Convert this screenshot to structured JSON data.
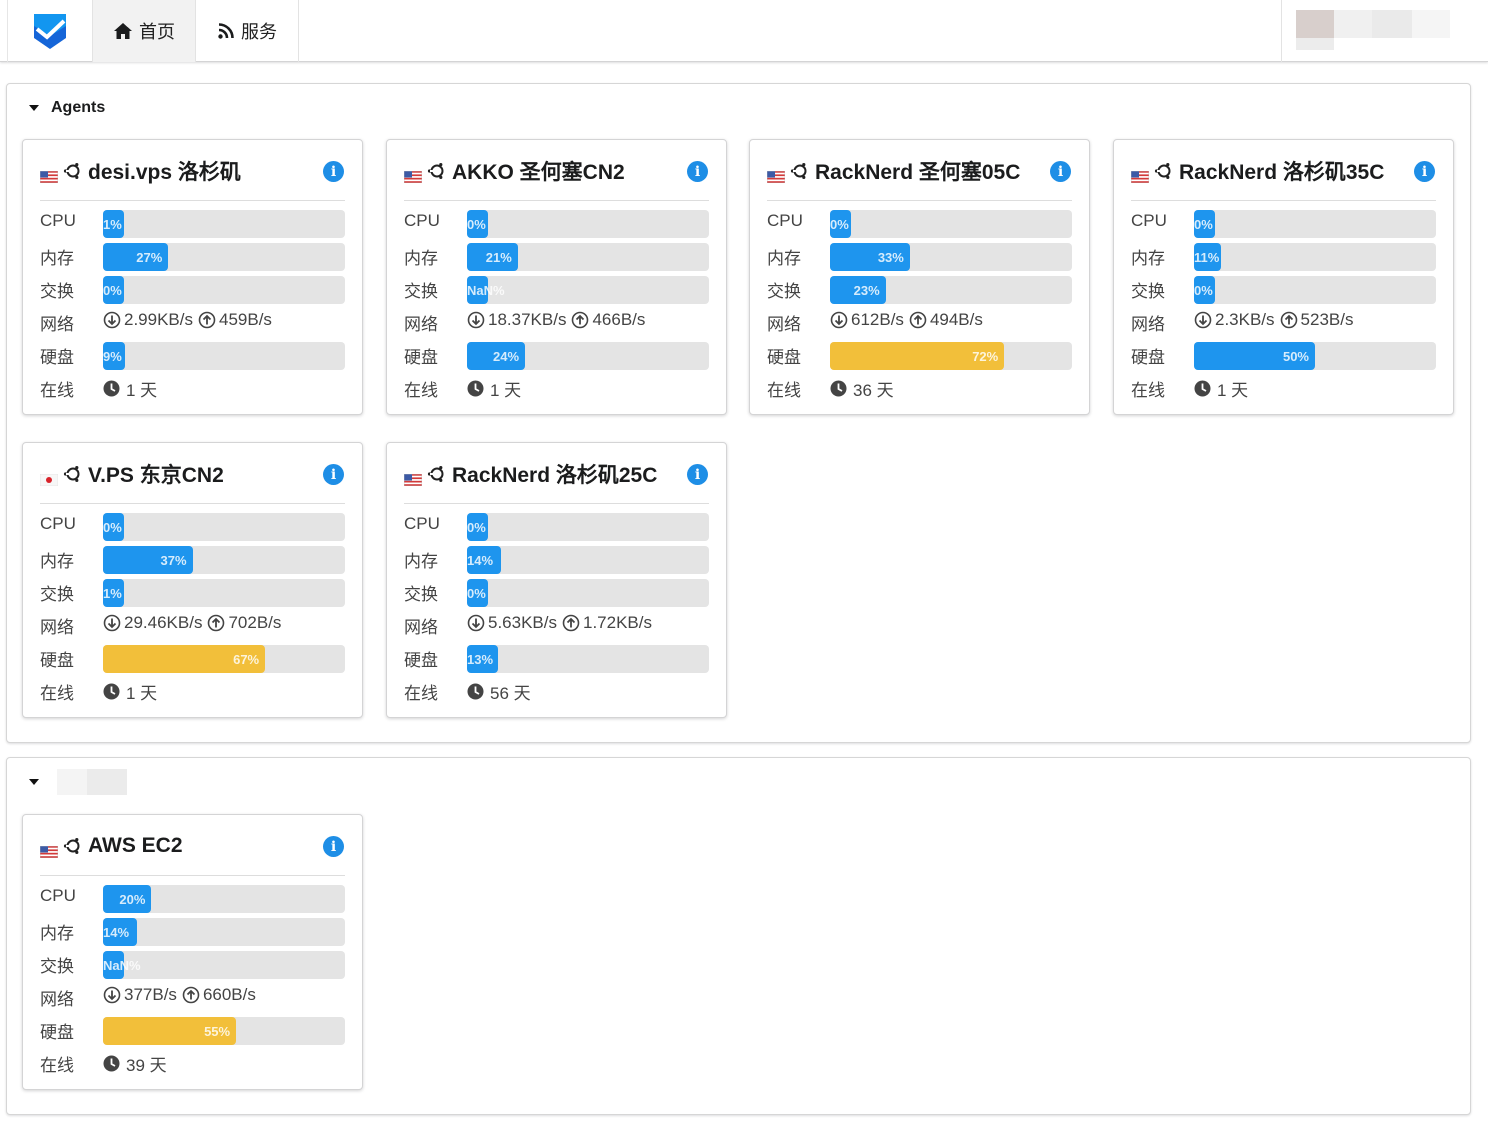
{
  "nav": {
    "logo": "shield-check-logo",
    "items": [
      {
        "label": "首页",
        "icon": "home-icon",
        "active": true
      },
      {
        "label": "服务",
        "icon": "rss-icon",
        "active": false
      }
    ]
  },
  "labels": {
    "cpu": "CPU",
    "mem": "内存",
    "swap": "交换",
    "net": "网络",
    "disk": "硬盘",
    "uptime": "在线"
  },
  "colors": {
    "bar_normal": "#1e95ee",
    "bar_warn": "#f2bf3a",
    "bar_track": "#e4e4e4",
    "info": "#1e8ee6"
  },
  "groups": [
    {
      "title": "Agents",
      "servers": [
        {
          "name": "desi.vps 洛杉矶",
          "flag": "us",
          "os": "ubuntu",
          "cpu": {
            "value": 1,
            "text": "1%"
          },
          "mem": {
            "value": 27,
            "text": "27%"
          },
          "swap": {
            "value": 0,
            "text": "0%"
          },
          "net_down": "2.99KB/s",
          "net_up": "459B/s",
          "disk": {
            "value": 9,
            "text": "9%"
          },
          "uptime": "1 天"
        },
        {
          "name": "AKKO 圣何塞CN2",
          "flag": "us",
          "os": "ubuntu",
          "cpu": {
            "value": 0,
            "text": "0%"
          },
          "mem": {
            "value": 21,
            "text": "21%"
          },
          "swap": {
            "value": 0,
            "text": "NaN%"
          },
          "net_down": "18.37KB/s",
          "net_up": "466B/s",
          "disk": {
            "value": 24,
            "text": "24%"
          },
          "uptime": "1 天"
        },
        {
          "name": "RackNerd 圣何塞05C",
          "flag": "us",
          "os": "ubuntu",
          "cpu": {
            "value": 0,
            "text": "0%"
          },
          "mem": {
            "value": 33,
            "text": "33%"
          },
          "swap": {
            "value": 23,
            "text": "23%"
          },
          "net_down": "612B/s",
          "net_up": "494B/s",
          "disk": {
            "value": 72,
            "text": "72%"
          },
          "uptime": "36 天"
        },
        {
          "name": "RackNerd 洛杉矶35C",
          "flag": "us",
          "os": "ubuntu",
          "cpu": {
            "value": 0,
            "text": "0%"
          },
          "mem": {
            "value": 11,
            "text": "11%"
          },
          "swap": {
            "value": 0,
            "text": "0%"
          },
          "net_down": "2.3KB/s",
          "net_up": "523B/s",
          "disk": {
            "value": 50,
            "text": "50%"
          },
          "uptime": "1 天"
        },
        {
          "name": "V.PS 东京CN2",
          "flag": "jp",
          "os": "ubuntu",
          "cpu": {
            "value": 0,
            "text": "0%"
          },
          "mem": {
            "value": 37,
            "text": "37%"
          },
          "swap": {
            "value": 1,
            "text": "1%"
          },
          "net_down": "29.46KB/s",
          "net_up": "702B/s",
          "disk": {
            "value": 67,
            "text": "67%"
          },
          "uptime": "1 天"
        },
        {
          "name": "RackNerd 洛杉矶25C",
          "flag": "us",
          "os": "ubuntu",
          "cpu": {
            "value": 0,
            "text": "0%"
          },
          "mem": {
            "value": 14,
            "text": "14%"
          },
          "swap": {
            "value": 0,
            "text": "0%"
          },
          "net_down": "5.63KB/s",
          "net_up": "1.72KB/s",
          "disk": {
            "value": 13,
            "text": "13%"
          },
          "uptime": "56 天"
        }
      ]
    },
    {
      "title": "",
      "servers": [
        {
          "name": "AWS EC2",
          "flag": "us",
          "os": "ubuntu",
          "cpu": {
            "value": 20,
            "text": "20%"
          },
          "mem": {
            "value": 14,
            "text": "14%"
          },
          "swap": {
            "value": 0,
            "text": "NaN%"
          },
          "net_down": "377B/s",
          "net_up": "660B/s",
          "disk": {
            "value": 55,
            "text": "55%"
          },
          "uptime": "39 天"
        }
      ]
    }
  ]
}
